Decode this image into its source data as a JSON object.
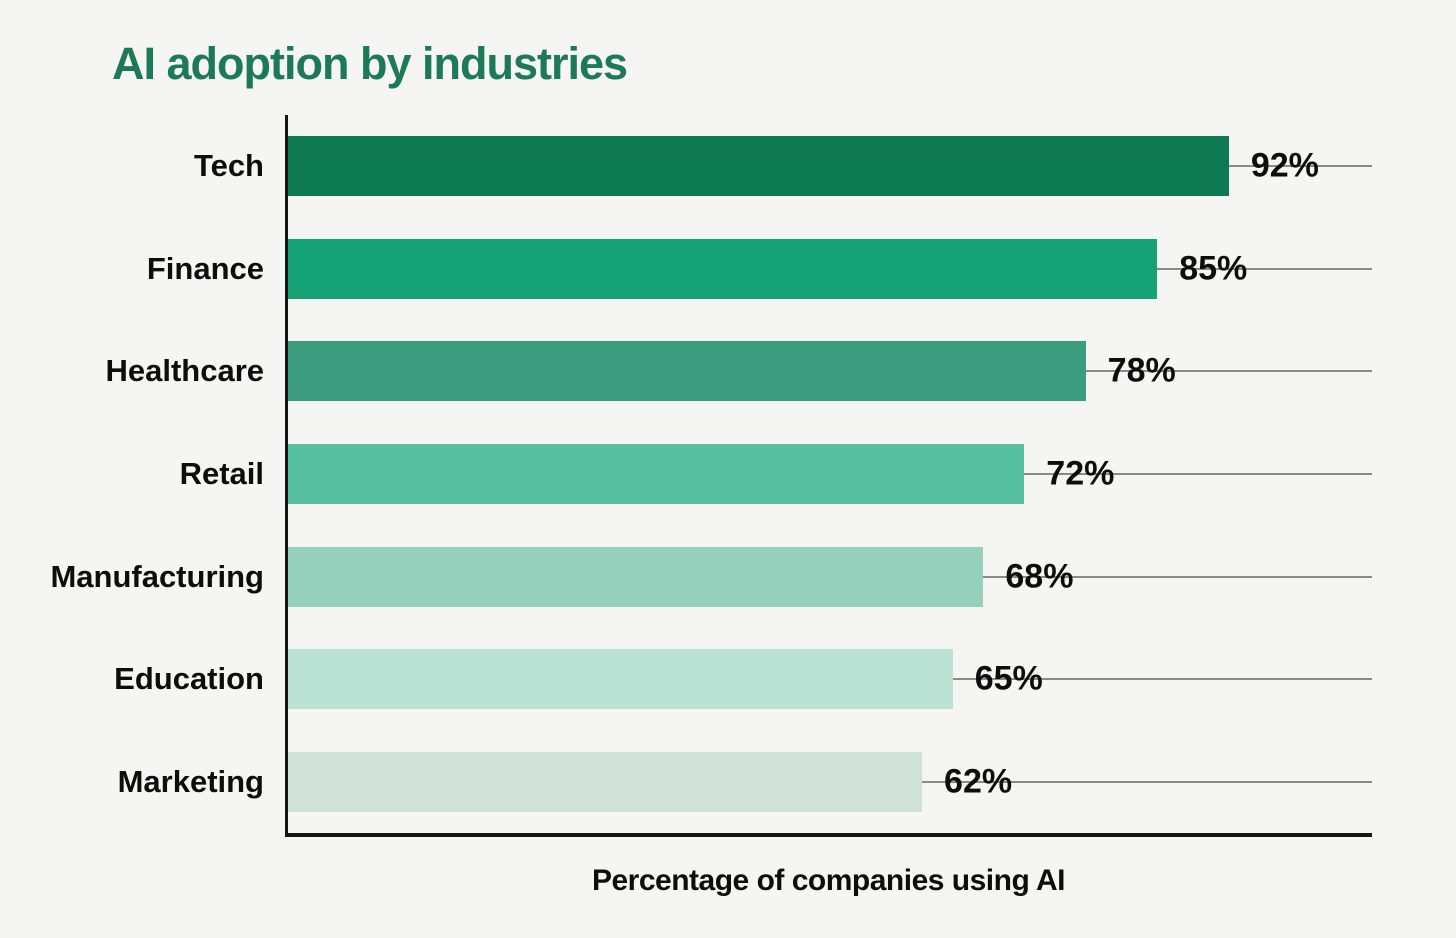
{
  "page": {
    "background_color": "#f5f5f3"
  },
  "title": {
    "text": "AI adoption by industries",
    "color": "#1d7a56"
  },
  "chart_data": {
    "type": "bar",
    "orientation": "horizontal",
    "title": "AI adoption by industries",
    "xlabel": "Percentage of companies using AI",
    "ylabel": "",
    "categories": [
      "Tech",
      "Finance",
      "Healthcare",
      "Retail",
      "Manufacturing",
      "Education",
      "Marketing"
    ],
    "values": [
      92,
      85,
      78,
      72,
      68,
      65,
      62
    ],
    "value_labels": [
      "92%",
      "85%",
      "78%",
      "72%",
      "68%",
      "65%",
      "62%"
    ],
    "bar_colors": [
      "#0d7a54",
      "#15a376",
      "#3b9c7e",
      "#56bfa0",
      "#95d0bd",
      "#b9e1d4",
      "#d0e1da"
    ],
    "xlim": [
      0,
      106
    ],
    "grid": false,
    "legend": false,
    "leader_line_color": "#8a8a8a",
    "axis_color": "#161616",
    "text_color": "#0d0d0d"
  }
}
